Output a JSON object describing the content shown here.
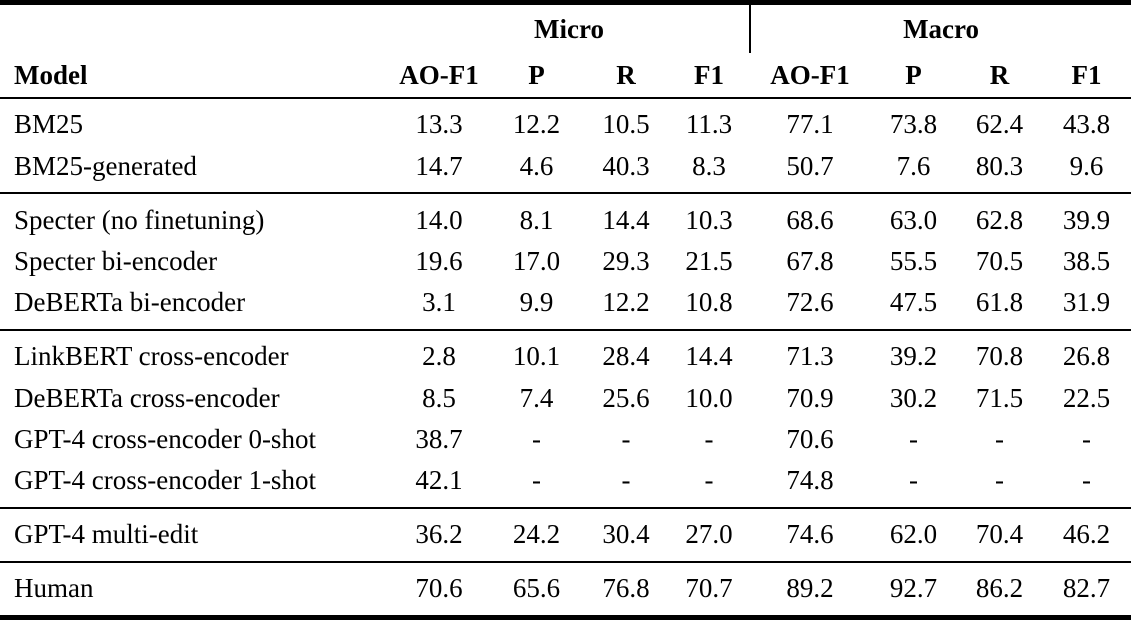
{
  "colors": {
    "background": "#ffffff",
    "text": "#000000",
    "rule": "#000000"
  },
  "table": {
    "col_groups": [
      {
        "label": "Micro"
      },
      {
        "label": "Macro"
      }
    ],
    "columns": [
      "Model",
      "AO-F1",
      "P",
      "R",
      "F1",
      "AO-F1",
      "P",
      "R",
      "F1"
    ],
    "empty_marker": "-",
    "groups": [
      {
        "rows": [
          {
            "model": "BM25",
            "values": [
              "13.3",
              "12.2",
              "10.5",
              "11.3",
              "77.1",
              "73.8",
              "62.4",
              "43.8"
            ]
          },
          {
            "model": "BM25-generated",
            "values": [
              "14.7",
              "4.6",
              "40.3",
              "8.3",
              "50.7",
              "7.6",
              "80.3",
              "9.6"
            ]
          }
        ]
      },
      {
        "rows": [
          {
            "model": "Specter (no finetuning)",
            "values": [
              "14.0",
              "8.1",
              "14.4",
              "10.3",
              "68.6",
              "63.0",
              "62.8",
              "39.9"
            ]
          },
          {
            "model": "Specter bi-encoder",
            "values": [
              "19.6",
              "17.0",
              "29.3",
              "21.5",
              "67.8",
              "55.5",
              "70.5",
              "38.5"
            ]
          },
          {
            "model": "DeBERTa bi-encoder",
            "values": [
              "3.1",
              "9.9",
              "12.2",
              "10.8",
              "72.6",
              "47.5",
              "61.8",
              "31.9"
            ]
          }
        ]
      },
      {
        "rows": [
          {
            "model": "LinkBERT cross-encoder",
            "values": [
              "2.8",
              "10.1",
              "28.4",
              "14.4",
              "71.3",
              "39.2",
              "70.8",
              "26.8"
            ]
          },
          {
            "model": "DeBERTa cross-encoder",
            "values": [
              "8.5",
              "7.4",
              "25.6",
              "10.0",
              "70.9",
              "30.2",
              "71.5",
              "22.5"
            ]
          },
          {
            "model": "GPT-4 cross-encoder 0-shot",
            "values": [
              "38.7",
              "-",
              "-",
              "-",
              "70.6",
              "-",
              "-",
              "-"
            ]
          },
          {
            "model": "GPT-4 cross-encoder 1-shot",
            "values": [
              "42.1",
              "-",
              "-",
              "-",
              "74.8",
              "-",
              "-",
              "-"
            ]
          }
        ]
      },
      {
        "rows": [
          {
            "model": "GPT-4 multi-edit",
            "values": [
              "36.2",
              "24.2",
              "30.4",
              "27.0",
              "74.6",
              "62.0",
              "70.4",
              "46.2"
            ]
          }
        ]
      },
      {
        "rows": [
          {
            "model": "Human",
            "values": [
              "70.6",
              "65.6",
              "76.8",
              "70.7",
              "89.2",
              "92.7",
              "86.2",
              "82.7"
            ]
          }
        ]
      }
    ]
  }
}
